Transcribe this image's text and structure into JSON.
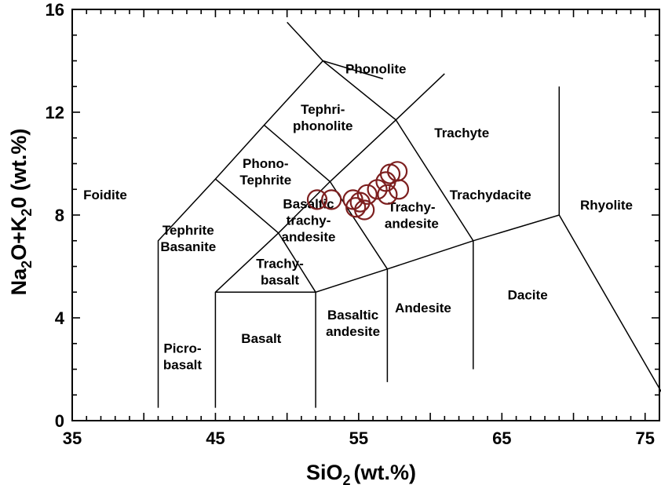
{
  "chart_data": {
    "type": "scatter",
    "title": "",
    "xlabel": "SiO",
    "xlabel_sub": "2",
    "xlabel_rest": "(wt.%)",
    "ylabel": "Na2O+K20 (wt.%)",
    "ylabel_parts": [
      "Na",
      "2",
      "O+K",
      "2",
      "0 (wt.%)"
    ],
    "xlim": [
      35,
      76
    ],
    "ylim": [
      0,
      16
    ],
    "x_ticks": [
      35,
      45,
      55,
      65,
      75
    ],
    "y_ticks": [
      0,
      4,
      8,
      12,
      16
    ],
    "grid": false,
    "marker": "open-circle",
    "marker_color": "#7d1f1f",
    "series": [
      {
        "points": [
          {
            "x": 52.1,
            "y": 8.6
          },
          {
            "x": 53.1,
            "y": 8.6
          },
          {
            "x": 54.6,
            "y": 8.6
          },
          {
            "x": 54.8,
            "y": 8.3
          },
          {
            "x": 55.1,
            "y": 8.5
          },
          {
            "x": 55.4,
            "y": 8.2
          },
          {
            "x": 55.6,
            "y": 8.8
          },
          {
            "x": 56.3,
            "y": 9.0
          },
          {
            "x": 56.9,
            "y": 9.3
          },
          {
            "x": 57.0,
            "y": 8.8
          },
          {
            "x": 57.2,
            "y": 9.6
          },
          {
            "x": 57.7,
            "y": 9.7
          },
          {
            "x": 57.8,
            "y": 9.0
          }
        ]
      }
    ],
    "field_boundaries": [
      [
        [
          41,
          0.5
        ],
        [
          41,
          7
        ],
        [
          45,
          9.4
        ],
        [
          48.4,
          11.5
        ],
        [
          52.5,
          14
        ],
        [
          57.6,
          11.7
        ],
        [
          63,
          7
        ],
        [
          69,
          8
        ],
        [
          77.3,
          0
        ]
      ],
      [
        [
          45,
          0.5
        ],
        [
          45,
          5
        ],
        [
          49.4,
          7.3
        ],
        [
          53,
          9.3
        ],
        [
          57.6,
          11.7
        ]
      ],
      [
        [
          52,
          0.5
        ],
        [
          52,
          5
        ],
        [
          57,
          5.9
        ],
        [
          63,
          7
        ]
      ],
      [
        [
          57,
          1.5
        ],
        [
          57,
          5.9
        ]
      ],
      [
        [
          63,
          2
        ],
        [
          63,
          7
        ]
      ],
      [
        [
          49.4,
          7.3
        ],
        [
          52,
          5
        ]
      ],
      [
        [
          45,
          5
        ],
        [
          52,
          5
        ]
      ],
      [
        [
          45,
          9.4
        ],
        [
          49.4,
          7.3
        ]
      ],
      [
        [
          48.4,
          11.5
        ],
        [
          53,
          9.3
        ]
      ],
      [
        [
          53,
          9.3
        ],
        [
          57,
          5.9
        ]
      ],
      [
        [
          50,
          15.5
        ],
        [
          52.5,
          14
        ],
        [
          56.7,
          13.3
        ]
      ],
      [
        [
          57.6,
          11.7
        ],
        [
          61,
          13.5
        ]
      ],
      [
        [
          69,
          8
        ],
        [
          69,
          13
        ]
      ]
    ],
    "field_labels": [
      {
        "lines": [
          "Phonolite"
        ],
        "x": 56.2,
        "y": 13.7
      },
      {
        "lines": [
          "Tephri-",
          "phonolite"
        ],
        "x": 52.5,
        "y": 11.8
      },
      {
        "lines": [
          "Trachyte"
        ],
        "x": 62.2,
        "y": 11.2
      },
      {
        "lines": [
          "Phono-",
          "Tephrite"
        ],
        "x": 48.5,
        "y": 9.7
      },
      {
        "lines": [
          "Foidite"
        ],
        "x": 37.3,
        "y": 8.8
      },
      {
        "lines": [
          "Trachydacite"
        ],
        "x": 64.2,
        "y": 8.8
      },
      {
        "lines": [
          "Rhyolite"
        ],
        "x": 72.3,
        "y": 8.4
      },
      {
        "lines": [
          "Basaltic",
          "trachy-",
          "andesite"
        ],
        "x": 51.5,
        "y": 7.8
      },
      {
        "lines": [
          "Trachy-",
          "andesite"
        ],
        "x": 58.7,
        "y": 8.0
      },
      {
        "lines": [
          "Tephrite",
          "Basanite"
        ],
        "x": 43.1,
        "y": 7.1
      },
      {
        "lines": [
          "Trachy-",
          "basalt"
        ],
        "x": 49.5,
        "y": 5.8
      },
      {
        "lines": [
          "Andesite"
        ],
        "x": 59.5,
        "y": 4.4
      },
      {
        "lines": [
          "Dacite"
        ],
        "x": 66.8,
        "y": 4.9
      },
      {
        "lines": [
          "Basaltic",
          "andesite"
        ],
        "x": 54.6,
        "y": 3.8
      },
      {
        "lines": [
          "Basalt"
        ],
        "x": 48.2,
        "y": 3.2
      },
      {
        "lines": [
          "Picro-",
          "basalt"
        ],
        "x": 42.7,
        "y": 2.5
      }
    ]
  }
}
